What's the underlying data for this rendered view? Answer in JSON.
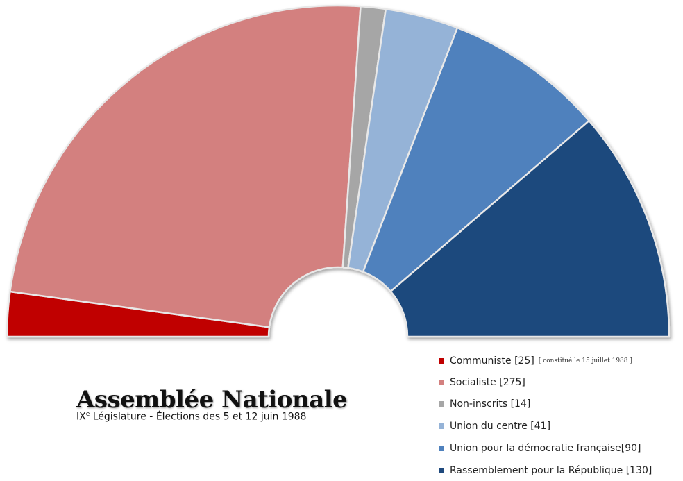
{
  "chart_data": {
    "type": "pie",
    "variant": "parliament-semicircle",
    "title": "Assemblée Nationale",
    "subtitle_prefix": "IX",
    "subtitle_sup": "e",
    "subtitle_rest": " Législature - Élections des 5 et 12 juin 1988",
    "total_seats": 575,
    "series": [
      {
        "name": "Communiste",
        "value": 25,
        "label": "Communiste [25]",
        "note": "[ constitué le 15 juillet 1988 ]",
        "color": "#c00000"
      },
      {
        "name": "Socialiste",
        "value": 275,
        "label": "Socialiste [275]",
        "note": "",
        "color": "#d3807f"
      },
      {
        "name": "Non-inscrits",
        "value": 14,
        "label": "Non-inscrits [14]",
        "note": "",
        "color": "#a6a6a6"
      },
      {
        "name": "Union du centre",
        "value": 41,
        "label": "Union du centre [41]",
        "note": "",
        "color": "#95b3d7"
      },
      {
        "name": "Union pour la démocratie française",
        "value": 90,
        "label": "Union pour la démocratie française[90]",
        "note": "",
        "color": "#4f81bd"
      },
      {
        "name": "Rassemblement pour la République",
        "value": 130,
        "label": "Rassemblement pour la République [130]",
        "note": "",
        "color": "#1f497d"
      }
    ],
    "legend_position": "bottom-right"
  }
}
